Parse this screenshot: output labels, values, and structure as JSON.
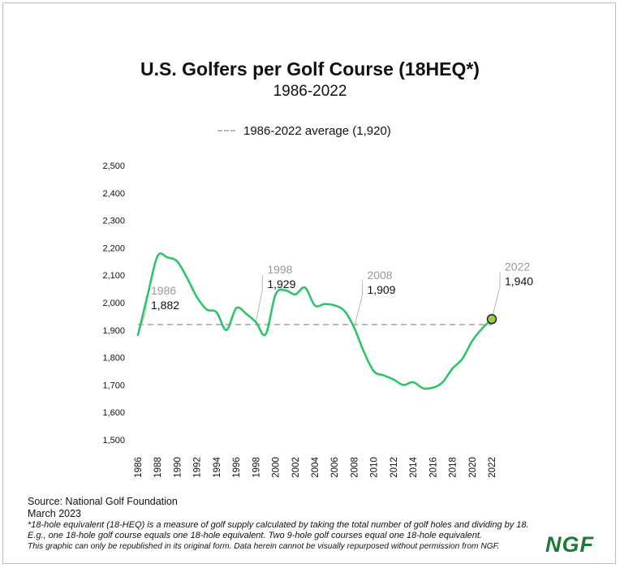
{
  "chart_data": {
    "type": "line",
    "title": "U.S. Golfers per Golf Course (18HEQ*)",
    "subtitle": "1986-2022",
    "legend": [
      {
        "label": "1986-2022 average (1,920)",
        "style": "dashed",
        "color": "#b8b8b8"
      }
    ],
    "average": 1920,
    "xlim": [
      1986,
      2022
    ],
    "ylim": [
      1500,
      2500
    ],
    "yticks": [
      "1,500",
      "1,600",
      "1,700",
      "1,800",
      "1,900",
      "2,000",
      "2,100",
      "2,200",
      "2,300",
      "2,400",
      "2,500"
    ],
    "ytick_values": [
      1500,
      1600,
      1700,
      1800,
      1900,
      2000,
      2100,
      2200,
      2300,
      2400,
      2500
    ],
    "xticks": [
      "1986",
      "1988",
      "1990",
      "1992",
      "1994",
      "1996",
      "1998",
      "2000",
      "2002",
      "2004",
      "2006",
      "2008",
      "2010",
      "2012",
      "2014",
      "2016",
      "2018",
      "2020",
      "2022"
    ],
    "xtick_values": [
      1986,
      1988,
      1990,
      1992,
      1994,
      1996,
      1998,
      2000,
      2002,
      2004,
      2006,
      2008,
      2010,
      2012,
      2014,
      2016,
      2018,
      2020,
      2022
    ],
    "series": [
      {
        "color": "#2fc46a",
        "x": [
          1986,
          1987,
          1988,
          1989,
          1990,
          1991,
          1992,
          1993,
          1994,
          1995,
          1996,
          1997,
          1998,
          1999,
          2000,
          2001,
          2002,
          2003,
          2004,
          2005,
          2006,
          2007,
          2008,
          2009,
          2010,
          2011,
          2012,
          2013,
          2014,
          2015,
          2016,
          2017,
          2018,
          2019,
          2020,
          2021,
          2022
        ],
        "y": [
          1882,
          2030,
          2170,
          2165,
          2150,
          2090,
          2020,
          1975,
          1965,
          1900,
          1980,
          1960,
          1929,
          1885,
          2030,
          2045,
          2030,
          2055,
          1990,
          1995,
          1990,
          1970,
          1909,
          1820,
          1750,
          1735,
          1720,
          1700,
          1710,
          1688,
          1690,
          1710,
          1760,
          1795,
          1860,
          1905,
          1940
        ]
      }
    ],
    "annotations": [
      {
        "year_label": "1986",
        "value_label": "1,882",
        "x": 1986,
        "y": 1882
      },
      {
        "year_label": "1998",
        "value_label": "1,929",
        "x": 1998,
        "y": 1929
      },
      {
        "year_label": "2008",
        "value_label": "1,909",
        "x": 2008,
        "y": 1909
      },
      {
        "year_label": "2022",
        "value_label": "1,940",
        "x": 2022,
        "y": 1940
      }
    ],
    "highlight_point_color": "#9ccc48"
  },
  "footer": {
    "source": "Source: National Golf Foundation",
    "date": "March 2023",
    "note1": "*18-hole equivalent (18-HEQ) is a measure of golf supply calculated by taking the total number of golf holes and dividing by 18.",
    "note2": "E.g., one 18-hole golf course equals one 18-hole equivalent. Two 9-hole golf courses equal one 18-hole equivalent.",
    "note3": "This graphic can only be republished in its original form. Data herein cannot be visually repurposed without permission from NGF."
  },
  "logo": "NGF"
}
